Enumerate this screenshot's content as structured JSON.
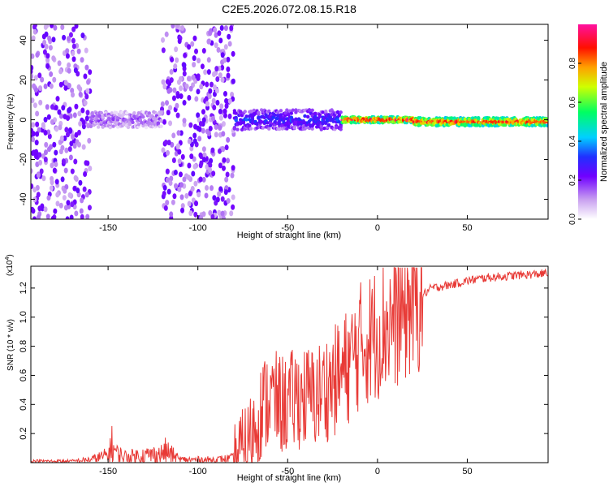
{
  "title": "C2E5.2026.072.08.15.R18",
  "chart_data": [
    {
      "type": "heatmap",
      "xlabel": "Height of straight line (km)",
      "ylabel": "Frequency (Hz)",
      "xlim": [
        -193,
        95
      ],
      "ylim": [
        -50,
        48
      ],
      "xticks": [
        -150,
        -100,
        -50,
        0,
        50
      ],
      "yticks": [
        -40,
        -20,
        0,
        20,
        40
      ],
      "colorbar": {
        "label": "Normalized spectral amplitude",
        "range": [
          0,
          1
        ],
        "ticks": [
          "0.0",
          "0.2",
          "0.4",
          "0.6",
          "0.8"
        ]
      },
      "features": [
        {
          "x_range": [
            -193,
            -160
          ],
          "description": "scattered noise across all frequencies"
        },
        {
          "x_range": [
            -160,
            -120
          ],
          "freq_center": 0,
          "width_hz": 8,
          "amplitude": 0.15
        },
        {
          "x_range": [
            -120,
            -80
          ],
          "description": "scattered noise across all frequencies"
        },
        {
          "x_range": [
            -80,
            -20
          ],
          "freq_center": 0,
          "width_hz": 10,
          "amplitude": 0.3
        },
        {
          "x_range": [
            -20,
            20
          ],
          "freq_center": 0,
          "width_hz": 3,
          "amplitude": 0.95
        },
        {
          "x_range": [
            20,
            95
          ],
          "freq_center": -1,
          "width_hz": 4,
          "amplitude": 0.9
        }
      ]
    },
    {
      "type": "line",
      "xlabel": "Height of straight line (km)",
      "ylabel": "SNR (10 * v/v)",
      "y_scale_label": "(x10",
      "y_scale_exp": "4",
      "xlim": [
        -193,
        95
      ],
      "ylim": [
        0,
        1.35
      ],
      "xticks": [
        -150,
        -100,
        -50,
        0,
        50
      ],
      "yticks": [
        "0.2",
        "0.4",
        "0.6",
        "0.8",
        "1.0",
        "1.2"
      ],
      "color": "#e83a36",
      "x": [
        -193,
        -170,
        -160,
        -150,
        -148,
        -145,
        -140,
        -130,
        -120,
        -118,
        -110,
        -100,
        -90,
        -80,
        -75,
        -70,
        -65,
        -60,
        -55,
        -50,
        -45,
        -40,
        -35,
        -30,
        -25,
        -20,
        -15,
        -10,
        -5,
        0,
        5,
        10,
        15,
        20,
        25,
        30,
        40,
        50,
        60,
        70,
        80,
        95
      ],
      "y": [
        0.01,
        0.01,
        0.02,
        0.05,
        0.12,
        0.06,
        0.04,
        0.05,
        0.06,
        0.08,
        0.02,
        0.02,
        0.02,
        0.03,
        0.1,
        0.2,
        0.35,
        0.45,
        0.4,
        0.4,
        0.45,
        0.45,
        0.45,
        0.5,
        0.55,
        0.6,
        0.7,
        0.8,
        0.85,
        0.9,
        0.95,
        1.0,
        1.05,
        1.1,
        1.15,
        1.2,
        1.22,
        1.25,
        1.27,
        1.28,
        1.29,
        1.3
      ]
    }
  ]
}
